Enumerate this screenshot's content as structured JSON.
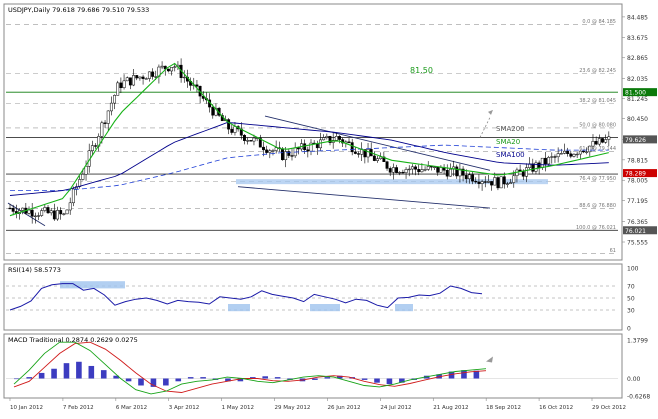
{
  "chart_data": [
    {
      "type": "line",
      "panel": "price",
      "title": "USDJPY,Daily  79.618 79.686 79.510 79.533",
      "timeframe": "Daily",
      "x": [
        "10 Jan 2012",
        "7 Feb 2012",
        "6 Mar 2012",
        "3 Apr 2012",
        "1 May 2012",
        "29 May 2012",
        "26 Jun 2012",
        "24 Jul 2012",
        "21 Aug 2012",
        "18 Sep 2012",
        "16 Oct 2012",
        "29 Oct 2012"
      ],
      "series": [
        {
          "name": "Price",
          "color": "#000000",
          "values": [
            76.9,
            76.6,
            81.8,
            82.6,
            80.1,
            79.0,
            79.7,
            78.5,
            78.4,
            77.9,
            78.9,
            79.6
          ]
        },
        {
          "name": "SMA20",
          "color": "#17b217",
          "values": [
            76.6,
            77.3,
            80.6,
            82.7,
            80.3,
            79.2,
            79.6,
            78.8,
            78.5,
            78.2,
            78.6,
            79.1
          ]
        },
        {
          "name": "SMA100",
          "color": "#00008b",
          "values": [
            77.4,
            77.6,
            78.2,
            79.5,
            80.3,
            80.1,
            79.9,
            79.6,
            79.1,
            78.7,
            78.6,
            78.7
          ]
        },
        {
          "name": "SMA200",
          "color": "#1f3fd6",
          "values": [
            77.6,
            77.6,
            77.8,
            78.3,
            78.9,
            79.1,
            79.2,
            79.3,
            79.4,
            79.3,
            79.2,
            79.2
          ]
        }
      ],
      "ylim": [
        75.0,
        84.6
      ],
      "y_ticks": [
        "84.485",
        "83.675",
        "82.865",
        "82.035",
        "81.245",
        "80.450",
        "79.625",
        "78.815",
        "78.005",
        "77.195",
        "76.365",
        "75.555"
      ],
      "fib_levels": [
        {
          "label": "0.0 @ 84.185",
          "value": 84.185
        },
        {
          "label": "23.6 @ 82.245",
          "value": 82.245
        },
        {
          "label": "38.2 @ 81.045",
          "value": 81.045
        },
        {
          "label": "50.0 @ 80.080",
          "value": 80.08
        },
        {
          "label": "61.8 @ 79.144",
          "value": 79.144
        },
        {
          "label": "76.4 @ 77.950",
          "value": 77.95
        },
        {
          "label": "88.6 @ 76.880",
          "value": 76.88
        },
        {
          "label": "100.0 @ 76.021",
          "value": 76.021
        },
        {
          "label": "61",
          "value": 75.1
        }
      ],
      "horizontal_lines": [
        81.5,
        79.7,
        78.25,
        76.02
      ],
      "price_labels": [
        {
          "text": "81.500",
          "value": 81.5,
          "color": "#0a7a0a"
        },
        {
          "text": "79.626",
          "value": 79.626,
          "color": "#555555"
        },
        {
          "text": "78.289",
          "value": 78.289,
          "color": "#cc0000"
        },
        {
          "text": "76.021",
          "value": 76.021,
          "color": "#555555"
        }
      ],
      "annotations": [
        "81.50",
        "SMA200",
        "SMA20",
        "SMA100"
      ]
    },
    {
      "type": "line",
      "panel": "rsi",
      "title": "RSI(14) 58.5773",
      "values": [
        30,
        36,
        45,
        66,
        72,
        74,
        74,
        63,
        66,
        55,
        38,
        44,
        48,
        50,
        46,
        40,
        46,
        44,
        43,
        40,
        52,
        50,
        48,
        52,
        62,
        56,
        53,
        50,
        44,
        56,
        52,
        48,
        42,
        48,
        46,
        38,
        34,
        50,
        51,
        55,
        54,
        58,
        70,
        66,
        59,
        57
      ],
      "ylim": [
        0,
        100
      ],
      "y_ticks": [
        "100",
        "70",
        "50",
        "30",
        "0"
      ],
      "levels": [
        70,
        50,
        30
      ]
    },
    {
      "type": "bar",
      "panel": "macd",
      "title": "MACD Traditional 0.2874 0.2629 0.0275",
      "histogram": [
        0,
        0.05,
        0.2,
        0.35,
        0.55,
        0.6,
        0.45,
        0.3,
        0.1,
        -0.1,
        -0.25,
        -0.3,
        -0.25,
        -0.1,
        0.05,
        0.05,
        -0.05,
        -0.1,
        -0.1,
        0.05,
        0.08,
        0.05,
        -0.05,
        -0.1,
        -0.05,
        0.05,
        0.1,
        0.05,
        -0.05,
        -0.15,
        -0.2,
        -0.15,
        -0.05,
        0.1,
        0.15,
        0.25,
        0.3,
        0.28
      ],
      "macd": [
        -0.2,
        0.3,
        0.9,
        1.3,
        1.3,
        1.0,
        0.5,
        0.0,
        -0.4,
        -0.55,
        -0.45,
        -0.2,
        -0.1,
        -0.05,
        0.05,
        0.0,
        -0.1,
        -0.15,
        -0.05,
        0.05,
        0.1,
        0.05,
        -0.1,
        -0.25,
        -0.3,
        -0.2,
        -0.05,
        0.05,
        0.15,
        0.25,
        0.3,
        0.35
      ],
      "signal": [
        -0.3,
        -0.1,
        0.4,
        0.9,
        1.25,
        1.3,
        1.05,
        0.65,
        0.2,
        -0.2,
        -0.45,
        -0.5,
        -0.35,
        -0.2,
        -0.1,
        0.0,
        0.0,
        -0.08,
        -0.1,
        -0.05,
        0.05,
        0.1,
        0.05,
        -0.1,
        -0.22,
        -0.28,
        -0.18,
        -0.05,
        0.07,
        0.17,
        0.24,
        0.28
      ],
      "ylim": [
        -0.6268,
        1.3799
      ],
      "y_ticks": [
        "1.3799",
        "0.00",
        "-0.6268"
      ]
    }
  ],
  "x_axis_labels": [
    "10 Jan 2012",
    "7 Feb 2012",
    "6 Mar 2012",
    "3 Apr 2012",
    "1 May 2012",
    "29 May 2012",
    "26 Jun 2012",
    "24 Jul 2012",
    "21 Aug 2012",
    "18 Sep 2012",
    "16 Oct 2012",
    "29 Oct 2012"
  ]
}
